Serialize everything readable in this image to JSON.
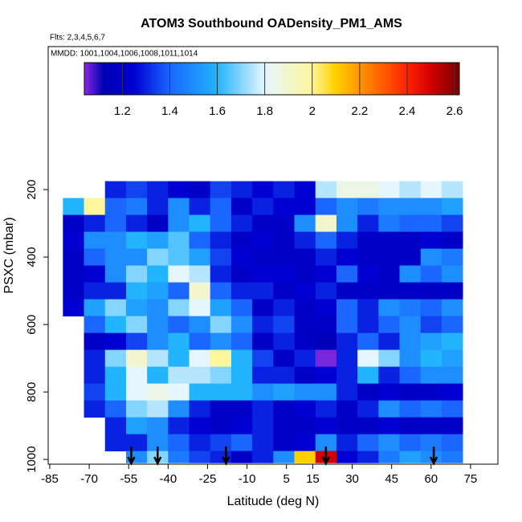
{
  "chart_data": {
    "type": "heatmap",
    "title": "ATOM3 Southbound OADensity_PM1_AMS",
    "subtitle": "Flts: 2,3,4,5,6,7",
    "annotation": "MMDD: 1001,1004,1006,1008,1011,1014",
    "x_label": "Latitude (deg N)",
    "y_label": "PSXC (mbar)",
    "xlim": [
      -85.6,
      85.4
    ],
    "ylim": [
      1014,
      -224
    ],
    "xticks": [
      -85,
      -70,
      -55,
      -40,
      -25,
      -10,
      5,
      15,
      30,
      45,
      60,
      75
    ],
    "yticks": [
      200,
      400,
      600,
      800,
      1000
    ],
    "x_edges": [
      -80,
      -72,
      -64,
      -56,
      -48,
      -40,
      -32,
      -24,
      -16,
      -8,
      0,
      8,
      16,
      24,
      32,
      40,
      48,
      56,
      64,
      72
    ],
    "y_edges": [
      175,
      225,
      275,
      325,
      375,
      425,
      475,
      525,
      575,
      625,
      675,
      725,
      775,
      825,
      875,
      925,
      975,
      1010
    ],
    "z": [
      [
        null,
        null,
        1.3,
        1.35,
        1.3,
        1.25,
        1.2,
        1.35,
        1.3,
        1.25,
        1.3,
        1.25,
        1.75,
        1.85,
        1.85,
        1.8,
        1.75,
        1.8,
        1.75
      ],
      [
        1.6,
        2.0,
        1.4,
        1.45,
        1.3,
        1.5,
        1.3,
        1.4,
        1.2,
        1.3,
        1.25,
        1.25,
        1.4,
        1.5,
        1.45,
        1.5,
        1.5,
        1.5,
        1.55
      ],
      [
        1.2,
        1.3,
        1.4,
        1.3,
        1.2,
        1.5,
        1.6,
        1.4,
        1.3,
        1.2,
        1.2,
        1.5,
        1.9,
        1.5,
        1.3,
        1.45,
        1.4,
        1.4,
        1.35
      ],
      [
        1.25,
        1.5,
        1.5,
        1.6,
        1.55,
        1.65,
        1.4,
        1.3,
        1.2,
        1.25,
        1.2,
        1.3,
        1.4,
        1.3,
        1.2,
        1.2,
        1.2,
        1.25,
        1.2
      ],
      [
        1.2,
        1.4,
        1.5,
        1.5,
        1.7,
        1.65,
        1.55,
        1.35,
        1.25,
        1.2,
        1.2,
        1.2,
        1.3,
        1.25,
        1.2,
        1.2,
        1.2,
        1.5,
        1.45
      ],
      [
        1.2,
        1.25,
        1.5,
        1.7,
        1.6,
        1.8,
        1.75,
        1.3,
        1.2,
        1.25,
        1.25,
        1.2,
        1.25,
        1.4,
        1.25,
        1.2,
        1.5,
        1.4,
        1.5
      ],
      [
        1.2,
        1.3,
        1.3,
        1.6,
        1.55,
        1.4,
        1.9,
        1.4,
        1.3,
        1.3,
        1.2,
        1.25,
        1.3,
        1.2,
        1.2,
        1.2,
        1.2,
        1.2,
        1.2
      ],
      [
        1.25,
        1.55,
        1.7,
        1.55,
        1.5,
        1.7,
        1.8,
        1.55,
        1.4,
        1.2,
        1.3,
        1.2,
        1.25,
        1.4,
        1.3,
        1.5,
        1.45,
        1.4,
        1.5
      ],
      [
        null,
        1.4,
        1.6,
        1.7,
        1.5,
        1.4,
        1.5,
        1.7,
        1.5,
        1.3,
        1.35,
        1.2,
        1.2,
        1.4,
        1.3,
        1.4,
        1.5,
        1.35,
        1.4
      ],
      [
        null,
        1.2,
        1.25,
        1.35,
        1.5,
        1.6,
        1.4,
        1.5,
        1.4,
        1.2,
        1.3,
        1.2,
        1.15,
        1.3,
        1.4,
        1.3,
        1.5,
        1.55,
        1.6
      ],
      [
        null,
        1.3,
        1.7,
        1.9,
        1.75,
        1.6,
        1.8,
        2.0,
        1.6,
        1.35,
        1.2,
        1.3,
        1.05,
        1.3,
        1.8,
        1.7,
        1.5,
        1.6,
        1.55
      ],
      [
        null,
        1.3,
        1.6,
        1.8,
        1.6,
        1.75,
        1.75,
        1.7,
        1.6,
        1.3,
        1.3,
        1.2,
        1.25,
        1.3,
        1.6,
        1.3,
        1.4,
        1.5,
        1.5
      ],
      [
        null,
        1.35,
        1.6,
        1.8,
        1.85,
        1.8,
        1.6,
        1.6,
        1.6,
        1.5,
        1.55,
        1.5,
        1.5,
        1.3,
        1.2,
        1.25,
        1.2,
        1.2,
        1.25
      ],
      [
        null,
        1.3,
        1.4,
        1.7,
        1.75,
        1.5,
        1.3,
        1.2,
        1.2,
        1.3,
        1.2,
        1.25,
        1.3,
        1.2,
        1.3,
        1.5,
        1.4,
        1.45,
        1.4
      ],
      [
        null,
        null,
        1.3,
        1.55,
        1.5,
        1.3,
        1.25,
        1.2,
        1.25,
        1.3,
        1.2,
        1.2,
        1.25,
        1.2,
        1.2,
        1.25,
        1.2,
        1.2,
        1.2
      ],
      [
        null,
        null,
        1.3,
        1.3,
        1.5,
        1.4,
        1.3,
        1.35,
        1.4,
        1.3,
        1.2,
        1.25,
        1.5,
        1.3,
        1.4,
        1.5,
        1.4,
        1.45,
        1.4
      ],
      [
        null,
        null,
        null,
        1.5,
        1.7,
        1.45,
        1.35,
        1.3,
        1.2,
        1.3,
        1.5,
        2.1,
        2.5,
        1.25,
        1.3,
        1.45,
        1.55,
        1.5,
        1.45
      ]
    ],
    "arrows": [
      -54,
      -44,
      -18,
      20,
      61
    ],
    "colorbar_lim": [
      1.04,
      2.62
    ],
    "colorbar_ticks": [
      1.2,
      1.4,
      1.6,
      1.8,
      2.0,
      2.2,
      2.4,
      2.6
    ],
    "colorscale": [
      [
        1.04,
        "#8a2be2"
      ],
      [
        1.12,
        "#0000b4"
      ],
      [
        1.25,
        "#0000d2"
      ],
      [
        1.4,
        "#1a66ff"
      ],
      [
        1.6,
        "#22b4ff"
      ],
      [
        1.8,
        "#e6f6ff"
      ],
      [
        2.0,
        "#fff59a"
      ],
      [
        2.1,
        "#ffd000"
      ],
      [
        2.2,
        "#ff9400"
      ],
      [
        2.4,
        "#ff2200"
      ],
      [
        2.5,
        "#d20000"
      ],
      [
        2.62,
        "#7a0000"
      ]
    ]
  }
}
